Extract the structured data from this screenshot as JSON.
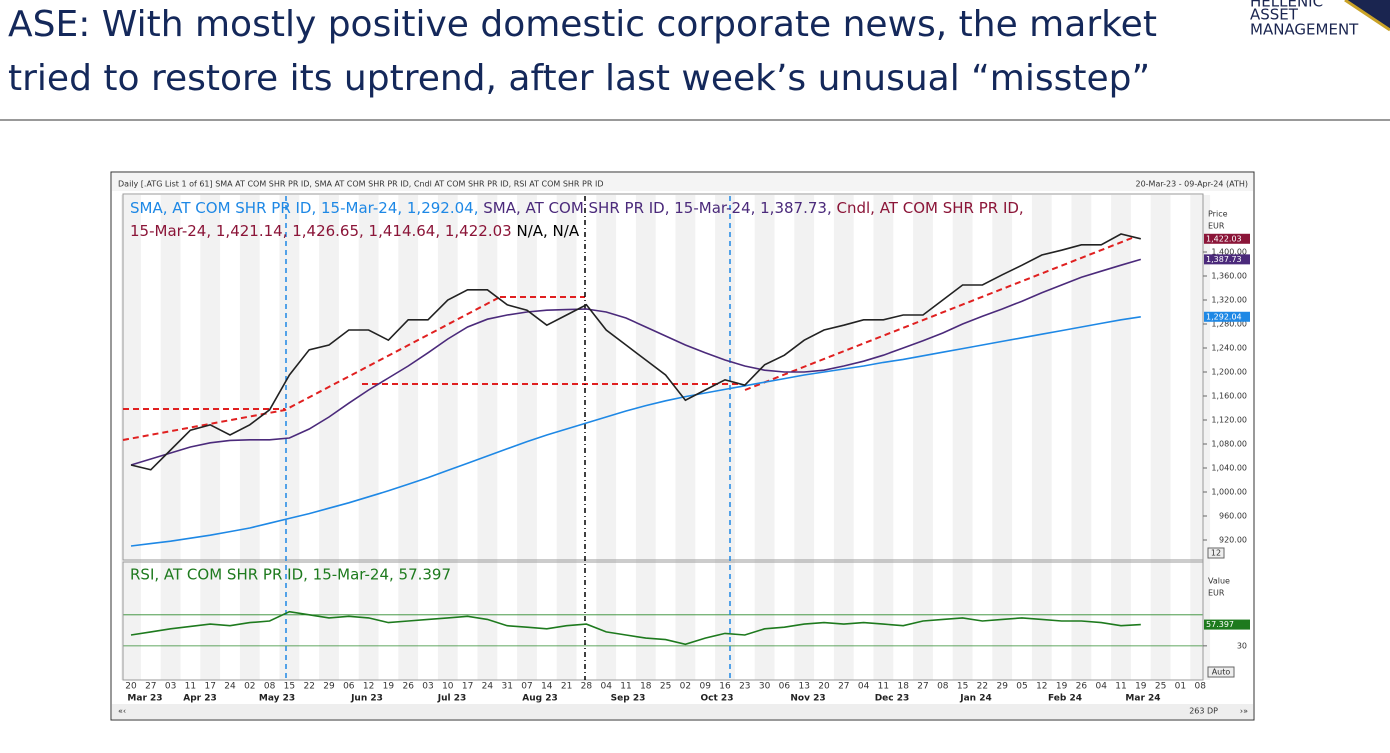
{
  "title": [
    "ASE: With mostly positive domestic corporate news, the market",
    "tried to restore its uptrend, after last week’s unusual “misstep”"
  ],
  "logo": [
    "HELLENIC",
    "ASSET",
    "MANAGEMENT"
  ],
  "chart_data": [
    {
      "type": "line",
      "header": "Daily [.ATG List 1 of 61] SMA AT COM SHR PR ID, SMA AT COM SHR PR ID, Cndl AT COM SHR PR ID, RSI AT COM SHR PR ID",
      "range_text": "20-Mar-23 - 09-Apr-24 (ATH)",
      "y_axis_label": [
        "Price",
        "EUR"
      ],
      "scale_box": "12",
      "categories": [
        "20",
        "27",
        "03",
        "11",
        "17",
        "24",
        "02",
        "08",
        "15",
        "22",
        "29",
        "06",
        "12",
        "19",
        "26",
        "03",
        "10",
        "17",
        "24",
        "31",
        "07",
        "14",
        "21",
        "28",
        "04",
        "11",
        "18",
        "25",
        "02",
        "09",
        "16",
        "23",
        "30",
        "06",
        "13",
        "20",
        "27",
        "04",
        "11",
        "18",
        "27",
        "08",
        "15",
        "22",
        "29",
        "05",
        "12",
        "19",
        "26",
        "04",
        "11",
        "19",
        "25",
        "01",
        "08"
      ],
      "months": [
        "Mar 23",
        "Apr 23",
        "May 23",
        "Jun 23",
        "Jul 23",
        "Aug 23",
        "Sep 23",
        "Oct 23",
        "Nov 23",
        "Dec 23",
        "Jan 24",
        "Feb 24",
        "Mar 24"
      ],
      "ylim": [
        890,
        1495
      ],
      "yticks": [
        {
          "value": 920,
          "label": "920.00"
        },
        {
          "value": 960,
          "label": "960.00"
        },
        {
          "value": 1000,
          "label": "1,000.00"
        },
        {
          "value": 1040,
          "label": "1,040.00"
        },
        {
          "value": 1080,
          "label": "1,080.00"
        },
        {
          "value": 1120,
          "label": "1,120.00"
        },
        {
          "value": 1160,
          "label": "1,160.00"
        },
        {
          "value": 1200,
          "label": "1,200.00"
        },
        {
          "value": 1240,
          "label": "1,240.00"
        },
        {
          "value": 1280,
          "label": "1,280.00"
        },
        {
          "value": 1320,
          "label": "1,320.00"
        },
        {
          "value": 1360,
          "label": "1,360.00"
        },
        {
          "value": 1400,
          "label": "1,400.00"
        }
      ],
      "series": [
        {
          "name": "SMA, AT COM SHR PR ID, 15-Mar-24, 1,292.04,",
          "color": "#1e88e5",
          "values": [
            910,
            914,
            918,
            923,
            928,
            934,
            940,
            948,
            956,
            964,
            973,
            982,
            992,
            1002,
            1013,
            1024,
            1036,
            1048,
            1060,
            1072,
            1084,
            1095,
            1105,
            1115,
            1125,
            1135,
            1144,
            1152,
            1159,
            1165,
            1171,
            1177,
            1183,
            1189,
            1195,
            1200,
            1205,
            1210,
            1216,
            1221,
            1227,
            1233,
            1239,
            1245,
            1251,
            1257,
            1263,
            1269,
            1275,
            1281,
            1287,
            1292.04,
            null,
            null,
            null
          ],
          "last_label": "1,292.04"
        },
        {
          "name": "SMA, AT COM SHR PR ID, 15-Mar-24, 1,387.73,",
          "color": "#4b2a7b",
          "values": [
            1045,
            1055,
            1065,
            1075,
            1082,
            1086,
            1087,
            1087,
            1090,
            1105,
            1125,
            1148,
            1170,
            1190,
            1210,
            1232,
            1255,
            1275,
            1288,
            1295,
            1300,
            1303,
            1304,
            1305,
            1300,
            1290,
            1275,
            1260,
            1245,
            1232,
            1220,
            1210,
            1203,
            1200,
            1200,
            1203,
            1210,
            1218,
            1228,
            1240,
            1252,
            1265,
            1280,
            1293,
            1305,
            1318,
            1332,
            1345,
            1358,
            1368,
            1378,
            1387.73,
            null,
            null,
            null
          ],
          "last_label": "1,387.73"
        },
        {
          "name": "Cndl, AT COM SHR PR ID,",
          "detail": "15-Mar-24, 1,421.14, 1,426.65, 1,414.64, 1,422.03",
          "extra": "N/A, N/A",
          "color": "#8b1538",
          "line_color": "#222222",
          "values": [
            1045,
            1037,
            1070,
            1103,
            1112,
            1095,
            1112,
            1137,
            1195,
            1237,
            1245,
            1270,
            1270,
            1253,
            1287,
            1287,
            1320,
            1337,
            1337,
            1312,
            1303,
            1278,
            1295,
            1312,
            1270,
            1245,
            1220,
            1195,
            1153,
            1170,
            1187,
            1178,
            1212,
            1228,
            1253,
            1270,
            1278,
            1287,
            1287,
            1295,
            1295,
            1320,
            1345,
            1345,
            1362,
            1378,
            1395,
            1403,
            1412,
            1412,
            1430,
            1422.03,
            null,
            null,
            null
          ],
          "last_label": "1,422.03"
        }
      ]
    },
    {
      "type": "line",
      "y_axis_label": [
        "Value",
        "EUR"
      ],
      "scale_box": "Auto",
      "points_text": "263 DP",
      "ylim": [
        -14,
        138
      ],
      "yticks": [
        30
      ],
      "levels": [
        30,
        70
      ],
      "series": [
        {
          "name": "RSI, AT COM SHR PR ID, 15-Mar-24, 57.397",
          "color": "#1e7a1e",
          "values": [
            44,
            48,
            52,
            55,
            58,
            56,
            60,
            62,
            74,
            70,
            66,
            68,
            66,
            60,
            62,
            64,
            66,
            68,
            64,
            56,
            54,
            52,
            56,
            58,
            48,
            44,
            40,
            38,
            32,
            40,
            46,
            44,
            52,
            54,
            58,
            60,
            58,
            60,
            58,
            56,
            62,
            64,
            66,
            62,
            64,
            66,
            64,
            62,
            62,
            60,
            56,
            57.397,
            null,
            null,
            null
          ],
          "last_label": "57.397"
        }
      ]
    }
  ]
}
